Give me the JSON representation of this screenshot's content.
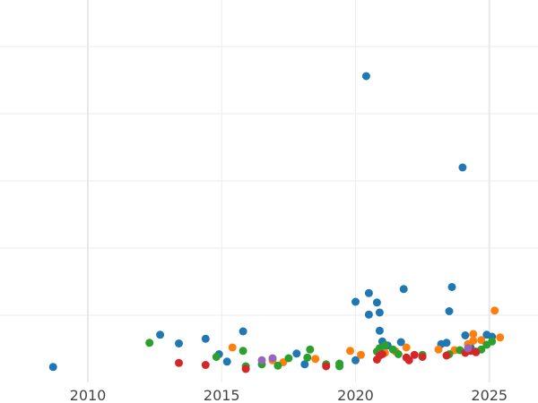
{
  "chart_data": {
    "type": "scatter",
    "title": "",
    "xlabel": "",
    "ylabel": "",
    "xlim": [
      2006.7,
      2026.8
    ],
    "ylim": [
      0,
      5.6
    ],
    "grid": true,
    "legend": null,
    "x_ticks": [
      2010,
      2015,
      2020,
      2025
    ],
    "x_tick_labels": [
      "2010",
      "2015",
      "2020",
      "2025"
    ],
    "y_gridlines": [
      1,
      2,
      3,
      4,
      5
    ],
    "y_tick_labels": [],
    "colors": {
      "blue": "#1f77b4",
      "orange": "#ff7f0e",
      "green": "#2ca02c",
      "red": "#d62728",
      "purple": "#9467bd"
    },
    "series": [
      {
        "name": "blue",
        "color": "#1f77b4",
        "points": [
          [
            2008.7,
            0.23
          ],
          [
            2012.7,
            0.71
          ],
          [
            2013.4,
            0.58
          ],
          [
            2014.4,
            0.65
          ],
          [
            2014.9,
            0.42
          ],
          [
            2015.2,
            0.31
          ],
          [
            2015.8,
            0.76
          ],
          [
            2017.8,
            0.43
          ],
          [
            2018.1,
            0.27
          ],
          [
            2020.0,
            1.2
          ],
          [
            2020.0,
            0.33
          ],
          [
            2020.4,
            4.56
          ],
          [
            2020.5,
            1.33
          ],
          [
            2020.5,
            1.01
          ],
          [
            2020.8,
            1.19
          ],
          [
            2020.9,
            0.77
          ],
          [
            2020.9,
            1.04
          ],
          [
            2021.0,
            0.61
          ],
          [
            2021.2,
            0.55
          ],
          [
            2021.7,
            0.6
          ],
          [
            2021.8,
            1.39
          ],
          [
            2023.2,
            0.57
          ],
          [
            2023.4,
            0.59
          ],
          [
            2023.5,
            1.06
          ],
          [
            2023.6,
            1.42
          ],
          [
            2024.0,
            3.2
          ],
          [
            2024.1,
            0.7
          ],
          [
            2024.3,
            0.52
          ],
          [
            2024.9,
            0.71
          ],
          [
            2025.1,
            0.68
          ]
        ]
      },
      {
        "name": "orange",
        "color": "#ff7f0e",
        "points": [
          [
            2015.4,
            0.52
          ],
          [
            2016.9,
            0.33
          ],
          [
            2017.3,
            0.3
          ],
          [
            2018.5,
            0.35
          ],
          [
            2019.8,
            0.47
          ],
          [
            2020.2,
            0.41
          ],
          [
            2021.1,
            0.44
          ],
          [
            2021.5,
            0.46
          ],
          [
            2021.9,
            0.52
          ],
          [
            2023.1,
            0.49
          ],
          [
            2023.7,
            0.48
          ],
          [
            2024.2,
            0.57
          ],
          [
            2024.4,
            0.62
          ],
          [
            2024.4,
            0.72
          ],
          [
            2024.7,
            0.63
          ],
          [
            2025.2,
            1.07
          ],
          [
            2025.4,
            0.67
          ]
        ]
      },
      {
        "name": "green",
        "color": "#2ca02c",
        "points": [
          [
            2012.3,
            0.59
          ],
          [
            2014.8,
            0.38
          ],
          [
            2015.8,
            0.47
          ],
          [
            2015.9,
            0.24
          ],
          [
            2016.5,
            0.27
          ],
          [
            2017.1,
            0.25
          ],
          [
            2017.5,
            0.36
          ],
          [
            2018.2,
            0.37
          ],
          [
            2018.3,
            0.49
          ],
          [
            2018.9,
            0.27
          ],
          [
            2019.4,
            0.28
          ],
          [
            2019.4,
            0.24
          ],
          [
            2020.8,
            0.46
          ],
          [
            2020.9,
            0.51
          ],
          [
            2021.1,
            0.55
          ],
          [
            2021.4,
            0.49
          ],
          [
            2021.6,
            0.42
          ],
          [
            2022.5,
            0.41
          ],
          [
            2023.5,
            0.42
          ],
          [
            2023.9,
            0.48
          ],
          [
            2024.5,
            0.46
          ],
          [
            2024.7,
            0.49
          ],
          [
            2024.9,
            0.56
          ],
          [
            2025.1,
            0.61
          ]
        ]
      },
      {
        "name": "red",
        "color": "#d62728",
        "points": [
          [
            2013.4,
            0.29
          ],
          [
            2014.4,
            0.26
          ],
          [
            2015.9,
            0.2
          ],
          [
            2018.9,
            0.24
          ],
          [
            2020.8,
            0.34
          ],
          [
            2020.9,
            0.4
          ],
          [
            2021.0,
            0.42
          ],
          [
            2021.9,
            0.37
          ],
          [
            2022.0,
            0.33
          ],
          [
            2022.2,
            0.41
          ],
          [
            2022.5,
            0.38
          ],
          [
            2023.4,
            0.4
          ],
          [
            2024.1,
            0.44
          ],
          [
            2024.3,
            0.47
          ],
          [
            2024.5,
            0.45
          ]
        ]
      },
      {
        "name": "purple",
        "color": "#9467bd",
        "points": [
          [
            2016.5,
            0.33
          ],
          [
            2016.9,
            0.36
          ],
          [
            2024.2,
            0.51
          ]
        ]
      }
    ]
  }
}
